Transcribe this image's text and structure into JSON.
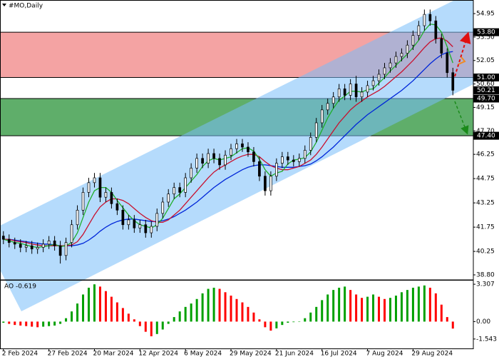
{
  "chart_data": [
    {
      "type": "candlestick",
      "title": "#MO,Daily",
      "xlim": [
        -0.6,
        82.6
      ],
      "ylim": [
        38.49,
        55.79
      ],
      "yticks": [
        54.95,
        {
          "value": 53.5,
          "label": "53.50"
        },
        52.05,
        {
          "value": 50.6,
          "label": "50.60"
        },
        49.15,
        {
          "value": 47.7,
          "label": "47.70"
        },
        46.25,
        44.75,
        43.25,
        41.75,
        40.25,
        {
          "value": 38.8,
          "label": "38.80"
        }
      ],
      "up_color": "#ffffff",
      "down_color": "#000000",
      "wick_color": "#000000",
      "open": [
        41.2,
        41.0,
        40.8,
        40.7,
        40.5,
        40.6,
        40.4,
        40.5,
        40.7,
        40.9,
        40.6,
        40.0,
        40.8,
        41.9,
        42.8,
        43.9,
        44.5,
        44.8,
        43.6,
        43.9,
        43.2,
        42.8,
        41.9,
        42.2,
        41.7,
        41.9,
        41.4,
        41.8,
        42.6,
        43.3,
        43.8,
        44.2,
        43.9,
        44.8,
        45.4,
        46.0,
        45.7,
        46.3,
        46.0,
        45.6,
        46.2,
        46.6,
        46.9,
        46.7,
        46.4,
        45.8,
        44.9,
        44.0,
        44.9,
        45.7,
        46.1,
        45.9,
        45.8,
        46.0,
        46.5,
        47.3,
        48.2,
        49.0,
        49.4,
        49.8,
        50.3,
        49.9,
        50.6,
        49.8,
        50.1,
        50.5,
        50.8,
        51.2,
        51.6,
        51.9,
        52.3,
        52.5,
        53.0,
        53.6,
        54.2,
        54.9,
        54.5,
        53.4,
        52.5,
        51.3
      ],
      "high": [
        41.5,
        41.3,
        41.1,
        41.0,
        40.9,
        40.9,
        40.8,
        41.0,
        41.2,
        41.2,
        40.9,
        41.1,
        42.2,
        43.1,
        44.2,
        44.8,
        45.1,
        45.1,
        44.2,
        44.2,
        43.5,
        43.1,
        42.5,
        42.5,
        42.2,
        42.2,
        42.1,
        42.9,
        43.6,
        44.1,
        44.5,
        44.5,
        45.1,
        45.7,
        46.3,
        46.3,
        46.6,
        46.6,
        46.3,
        46.5,
        46.9,
        47.2,
        47.2,
        47.0,
        46.7,
        46.1,
        45.2,
        45.2,
        46.0,
        46.4,
        46.4,
        46.2,
        46.3,
        46.8,
        47.6,
        48.5,
        49.3,
        49.7,
        50.1,
        50.6,
        50.6,
        50.9,
        51.1,
        50.4,
        50.8,
        51.1,
        51.5,
        51.9,
        52.2,
        52.6,
        52.8,
        53.3,
        53.9,
        54.5,
        55.2,
        55.2,
        54.8,
        53.7,
        52.8,
        51.6
      ],
      "low": [
        40.7,
        40.5,
        40.4,
        40.2,
        40.2,
        40.1,
        40.1,
        40.2,
        40.4,
        40.3,
        39.5,
        39.7,
        40.5,
        41.6,
        42.5,
        43.6,
        44.2,
        43.3,
        43.3,
        42.9,
        42.5,
        41.6,
        41.6,
        41.4,
        41.4,
        41.1,
        41.1,
        41.5,
        42.3,
        43.0,
        43.5,
        43.6,
        43.6,
        44.5,
        45.1,
        45.4,
        45.4,
        45.7,
        45.3,
        45.3,
        45.9,
        46.3,
        46.4,
        46.1,
        45.5,
        44.6,
        43.7,
        43.7,
        44.6,
        45.4,
        45.6,
        45.5,
        45.5,
        45.7,
        46.2,
        47.0,
        47.9,
        48.7,
        49.1,
        49.5,
        49.6,
        49.6,
        49.5,
        49.5,
        49.8,
        50.2,
        50.5,
        50.9,
        51.3,
        51.6,
        52.0,
        52.2,
        52.7,
        53.3,
        53.9,
        54.2,
        53.1,
        52.2,
        51.0,
        49.9
      ],
      "close": [
        41.0,
        40.8,
        40.7,
        40.5,
        40.6,
        40.4,
        40.5,
        40.7,
        40.9,
        40.6,
        40.0,
        40.8,
        41.9,
        42.8,
        43.9,
        44.5,
        44.8,
        43.6,
        43.9,
        43.2,
        42.8,
        41.9,
        42.2,
        41.7,
        41.9,
        41.4,
        41.8,
        42.6,
        43.3,
        43.8,
        44.2,
        43.9,
        44.8,
        45.4,
        46.0,
        45.7,
        46.3,
        46.0,
        45.6,
        46.2,
        46.6,
        46.9,
        46.7,
        46.4,
        45.8,
        44.9,
        44.0,
        44.9,
        45.7,
        46.1,
        45.9,
        45.8,
        46.0,
        46.5,
        47.3,
        48.2,
        49.0,
        49.4,
        49.8,
        50.3,
        49.9,
        50.6,
        49.8,
        50.1,
        50.5,
        50.8,
        51.2,
        51.6,
        51.9,
        52.3,
        52.5,
        53.0,
        53.6,
        54.2,
        54.9,
        54.5,
        53.4,
        52.5,
        51.3,
        50.21
      ],
      "lines": [
        {
          "color": "#0026d9",
          "values": [
            41.0,
            41.0,
            40.95,
            40.9,
            40.85,
            40.8,
            40.75,
            40.7,
            40.7,
            40.65,
            40.6,
            40.6,
            40.6,
            40.65,
            40.75,
            40.95,
            41.2,
            41.5,
            41.75,
            41.95,
            42.1,
            42.2,
            42.25,
            42.25,
            42.2,
            42.15,
            42.1,
            42.1,
            42.15,
            42.25,
            42.4,
            42.6,
            42.8,
            43.05,
            43.3,
            43.6,
            43.9,
            44.2,
            44.45,
            44.7,
            44.9,
            45.1,
            45.3,
            45.45,
            45.55,
            45.6,
            45.6,
            45.55,
            45.5,
            45.45,
            45.45,
            45.45,
            45.5,
            45.55,
            45.65,
            45.85,
            46.1,
            46.4,
            46.7,
            47.05,
            47.4,
            47.75,
            48.1,
            48.4,
            48.7,
            48.95,
            49.2,
            49.45,
            49.7,
            49.95,
            50.2,
            50.5,
            50.8,
            51.15,
            51.5,
            51.85,
            52.15,
            52.4,
            52.55,
            52.6
          ]
        },
        {
          "color": "#c8102e",
          "values": [
            41.0,
            41.0,
            40.9,
            40.85,
            40.8,
            40.7,
            40.65,
            40.6,
            40.6,
            40.6,
            40.6,
            40.6,
            40.65,
            40.85,
            41.3,
            41.9,
            42.5,
            43.0,
            43.3,
            43.5,
            43.5,
            43.4,
            43.2,
            42.9,
            42.6,
            42.35,
            42.15,
            42.05,
            42.05,
            42.2,
            42.5,
            42.8,
            43.2,
            43.6,
            44.0,
            44.4,
            44.8,
            45.15,
            45.4,
            45.6,
            45.8,
            46.0,
            46.15,
            46.25,
            46.25,
            46.1,
            45.8,
            45.55,
            45.4,
            45.3,
            45.3,
            45.4,
            45.5,
            45.7,
            45.9,
            46.25,
            46.7,
            47.2,
            47.7,
            48.2,
            48.6,
            49.0,
            49.3,
            49.55,
            49.8,
            50.0,
            50.2,
            50.45,
            50.75,
            51.05,
            51.35,
            51.7,
            52.05,
            52.45,
            52.85,
            53.2,
            53.4,
            53.45,
            53.25,
            52.9
          ]
        },
        {
          "color": "#1fae2a",
          "values": [
            41.0,
            40.9,
            40.8,
            40.75,
            40.65,
            40.55,
            40.5,
            40.55,
            40.6,
            40.7,
            40.55,
            40.6,
            40.8,
            41.4,
            42.35,
            43.3,
            44.0,
            44.2,
            44.2,
            43.9,
            43.4,
            42.95,
            42.5,
            42.15,
            41.9,
            41.8,
            41.7,
            41.9,
            42.3,
            42.9,
            43.5,
            43.8,
            44.2,
            44.6,
            45.0,
            45.5,
            45.85,
            46.0,
            45.9,
            46.0,
            46.1,
            46.35,
            46.6,
            46.65,
            46.45,
            45.95,
            45.3,
            44.9,
            45.1,
            45.2,
            45.65,
            45.9,
            45.95,
            46.05,
            46.4,
            47.0,
            47.75,
            48.5,
            49.1,
            49.6,
            49.85,
            50.15,
            50.15,
            50.1,
            50.25,
            50.3,
            50.65,
            51.0,
            51.4,
            51.75,
            52.1,
            52.45,
            52.85,
            53.3,
            53.9,
            54.3,
            54.25,
            53.8,
            52.9,
            51.9
          ]
        }
      ],
      "zones": [
        {
          "color": "#f4a3a3",
          "top": {
            "value": 53.8,
            "label": "53.80"
          },
          "bottom": {
            "value": 51.0,
            "label": "51.00"
          }
        },
        {
          "color": "#5fae6a",
          "top": {
            "value": 49.7,
            "label": "49.70"
          },
          "bottom": {
            "value": 47.4,
            "label": "47.40"
          }
        }
      ],
      "last_price": {
        "value": 50.21,
        "label": "50.21"
      }
    },
    {
      "type": "bar",
      "title": "AO -0.619",
      "xlim": [
        -0.6,
        82.6
      ],
      "ylim": [
        -2.44,
        3.63
      ],
      "yticks": [
        3.307,
        {
          "value": 0,
          "label": "0.00"
        },
        -1.543
      ],
      "xticks": [
        {
          "value": 0,
          "label": "2 Feb 2024"
        },
        {
          "value": 8,
          "label": "27 Feb 2024"
        },
        {
          "value": 16,
          "label": "20 Mar 2024"
        },
        {
          "value": 24,
          "label": "12 Apr 2024"
        },
        {
          "value": 32,
          "label": "6 May 2024"
        },
        {
          "value": 40,
          "label": "29 May 2024"
        },
        {
          "value": 48,
          "label": "21 Jun 2024"
        },
        {
          "value": 56,
          "label": "16 Jul 2024"
        },
        {
          "value": 64,
          "label": "7 Aug 2024"
        },
        {
          "value": 72,
          "label": "29 Aug 2024"
        }
      ],
      "up_color": "#00a000",
      "down_color": "#ff0000",
      "values": [
        -0.1,
        -0.2,
        -0.3,
        -0.35,
        -0.4,
        -0.45,
        -0.5,
        -0.45,
        -0.4,
        -0.35,
        -0.2,
        0.3,
        0.9,
        1.6,
        2.4,
        3.0,
        3.3,
        3.1,
        2.7,
        2.2,
        1.7,
        1.2,
        0.7,
        0.2,
        -0.4,
        -0.9,
        -1.3,
        -1.1,
        -0.7,
        -0.2,
        0.4,
        0.9,
        1.3,
        1.6,
        2.0,
        2.5,
        2.9,
        3.0,
        2.9,
        2.6,
        2.3,
        2.0,
        1.7,
        1.3,
        0.8,
        0.2,
        -0.5,
        -0.8,
        -0.6,
        -0.3,
        -0.1,
        -0.05,
        0.0,
        0.3,
        0.8,
        1.3,
        1.9,
        2.4,
        2.8,
        3.0,
        3.1,
        2.8,
        2.4,
        2.1,
        2.2,
        2.4,
        2.2,
        2.0,
        2.1,
        2.3,
        2.6,
        2.8,
        3.0,
        3.1,
        3.2,
        3.0,
        2.5,
        1.5,
        0.4,
        -0.619
      ]
    }
  ]
}
